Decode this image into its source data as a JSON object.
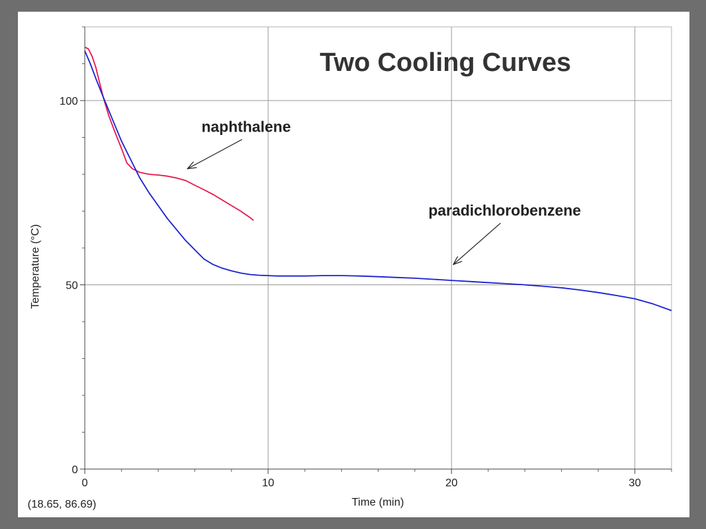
{
  "chart_data": {
    "type": "line",
    "title": "Two Cooling Curves",
    "xlabel": "Time (min)",
    "ylabel": "Temperature (°C)",
    "xlim": [
      0,
      32
    ],
    "ylim": [
      0,
      120
    ],
    "x_ticks_major": [
      0,
      10,
      20,
      30
    ],
    "x_ticks_minor": [
      2,
      4,
      6,
      8,
      12,
      14,
      16,
      18,
      22,
      24,
      26,
      28,
      32
    ],
    "y_ticks_major": [
      0,
      50,
      100
    ],
    "y_ticks_minor": [
      10,
      20,
      30,
      40,
      60,
      70,
      80,
      90,
      110,
      120
    ],
    "grid": true,
    "series": [
      {
        "name": "naphthalene",
        "color": "#e8194f",
        "points": [
          [
            0.0,
            114.5
          ],
          [
            0.2,
            114
          ],
          [
            0.4,
            112
          ],
          [
            0.6,
            109
          ],
          [
            0.8,
            105
          ],
          [
            1.0,
            101
          ],
          [
            1.3,
            96
          ],
          [
            1.6,
            92
          ],
          [
            2.0,
            87
          ],
          [
            2.3,
            83
          ],
          [
            2.6,
            81.5
          ],
          [
            3.0,
            80.5
          ],
          [
            3.5,
            80
          ],
          [
            4.0,
            79.8
          ],
          [
            4.5,
            79.5
          ],
          [
            5.0,
            79
          ],
          [
            5.5,
            78.3
          ],
          [
            6.0,
            77
          ],
          [
            6.5,
            75.8
          ],
          [
            7.0,
            74.5
          ],
          [
            7.5,
            73
          ],
          [
            8.0,
            71.5
          ],
          [
            8.5,
            70
          ],
          [
            9.0,
            68.3
          ],
          [
            9.2,
            67.5
          ]
        ]
      },
      {
        "name": "paradichlorobenzene",
        "color": "#1e23d2",
        "points": [
          [
            0.0,
            113.5
          ],
          [
            0.3,
            110
          ],
          [
            0.6,
            106
          ],
          [
            1.0,
            101
          ],
          [
            1.5,
            95
          ],
          [
            2.0,
            89
          ],
          [
            2.5,
            84
          ],
          [
            3.0,
            79
          ],
          [
            3.5,
            75
          ],
          [
            4.0,
            71.5
          ],
          [
            4.5,
            68
          ],
          [
            5.0,
            65
          ],
          [
            5.5,
            62
          ],
          [
            6.0,
            59.5
          ],
          [
            6.5,
            57
          ],
          [
            7.0,
            55.5
          ],
          [
            7.5,
            54.5
          ],
          [
            8.0,
            53.8
          ],
          [
            8.5,
            53.2
          ],
          [
            9.0,
            52.8
          ],
          [
            9.5,
            52.6
          ],
          [
            10.0,
            52.5
          ],
          [
            10.5,
            52.4
          ],
          [
            11.0,
            52.4
          ],
          [
            12.0,
            52.4
          ],
          [
            13.0,
            52.5
          ],
          [
            14.0,
            52.5
          ],
          [
            15.0,
            52.4
          ],
          [
            16.0,
            52.2
          ],
          [
            17.0,
            52.0
          ],
          [
            18.0,
            51.8
          ],
          [
            19.0,
            51.5
          ],
          [
            20.0,
            51.2
          ],
          [
            21.0,
            50.9
          ],
          [
            22.0,
            50.6
          ],
          [
            23.0,
            50.3
          ],
          [
            24.0,
            50.0
          ],
          [
            25.0,
            49.6
          ],
          [
            26.0,
            49.2
          ],
          [
            27.0,
            48.6
          ],
          [
            28.0,
            47.9
          ],
          [
            29.0,
            47.1
          ],
          [
            30.0,
            46.2
          ],
          [
            31.0,
            44.8
          ],
          [
            32.0,
            43.0
          ]
        ]
      }
    ],
    "annotations": [
      {
        "text": "naphthalene",
        "series": "naphthalene",
        "arrow_to": [
          5.6,
          81.5
        ],
        "text_at": [
          8.8,
          91.5
        ]
      },
      {
        "text": "paradichlorobenzene",
        "series": "paradichlorobenzene",
        "arrow_to": [
          20.1,
          55.5
        ],
        "text_at": [
          22.9,
          68.8
        ]
      }
    ]
  },
  "cursor_readout": "(18.65, 86.69)"
}
